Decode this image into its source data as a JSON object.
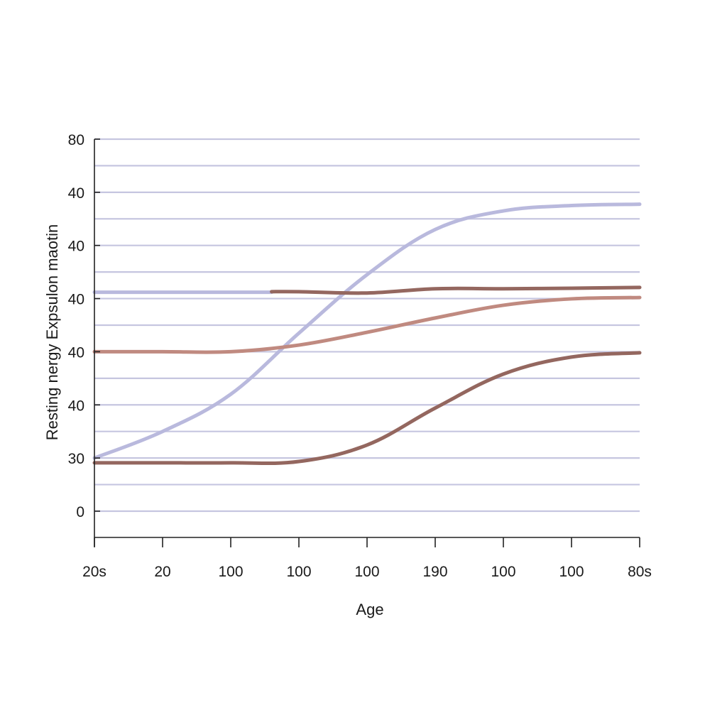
{
  "chart_data": {
    "type": "line",
    "title": "",
    "xlabel": "Age",
    "ylabel": "Resting nergy Expsulon maotin",
    "x_tick_labels": [
      "20s",
      "20",
      "100",
      "100",
      "100",
      "190",
      "100",
      "100",
      "80s"
    ],
    "y_tick_labels": [
      {
        "label": "80",
        "grid_index": 14
      },
      {
        "label": "40",
        "grid_index": 12
      },
      {
        "label": "40",
        "grid_index": 10
      },
      {
        "label": "40",
        "grid_index": 8
      },
      {
        "label": "40",
        "grid_index": 6
      },
      {
        "label": "40",
        "grid_index": 4
      },
      {
        "label": "30",
        "grid_index": 2
      },
      {
        "label": "0",
        "grid_index": 0
      }
    ],
    "y_unit_note": "values expressed in gridline units (0 = bottom labeled line '0', 14 = top line '80')",
    "ylim": [
      -1,
      14
    ],
    "grid": true,
    "gridlines": 15,
    "legend": null,
    "x": [
      0,
      1,
      2,
      3,
      4,
      5,
      6,
      7,
      8
    ],
    "series": [
      {
        "name": "lavender-rising",
        "color": "#b9b9dd",
        "values": [
          2.0,
          3.0,
          4.4,
          6.7,
          8.9,
          10.6,
          11.3,
          11.5,
          11.55
        ]
      },
      {
        "name": "lavender-flat-start",
        "color": "#b9b9dd",
        "x_range": [
          0,
          2.6
        ],
        "values": [
          8.24,
          8.24,
          8.24
        ]
      },
      {
        "name": "dark-brown-upper",
        "color": "#94675f",
        "x_start": 2.6,
        "values": [
          null,
          null,
          null,
          8.26,
          8.21,
          8.37,
          8.37,
          8.39,
          8.42
        ]
      },
      {
        "name": "salmon",
        "color": "#c08a80",
        "values": [
          6.0,
          6.0,
          6.0,
          6.25,
          6.73,
          7.27,
          7.75,
          7.99,
          8.04
        ]
      },
      {
        "name": "dark-brown-lower",
        "color": "#94675f",
        "values": [
          1.82,
          1.82,
          1.82,
          1.87,
          2.49,
          3.88,
          5.16,
          5.8,
          5.96
        ]
      }
    ]
  },
  "colors": {
    "gridline": "#c6c6e0",
    "axis": "#222222",
    "background": "#ffffff"
  }
}
